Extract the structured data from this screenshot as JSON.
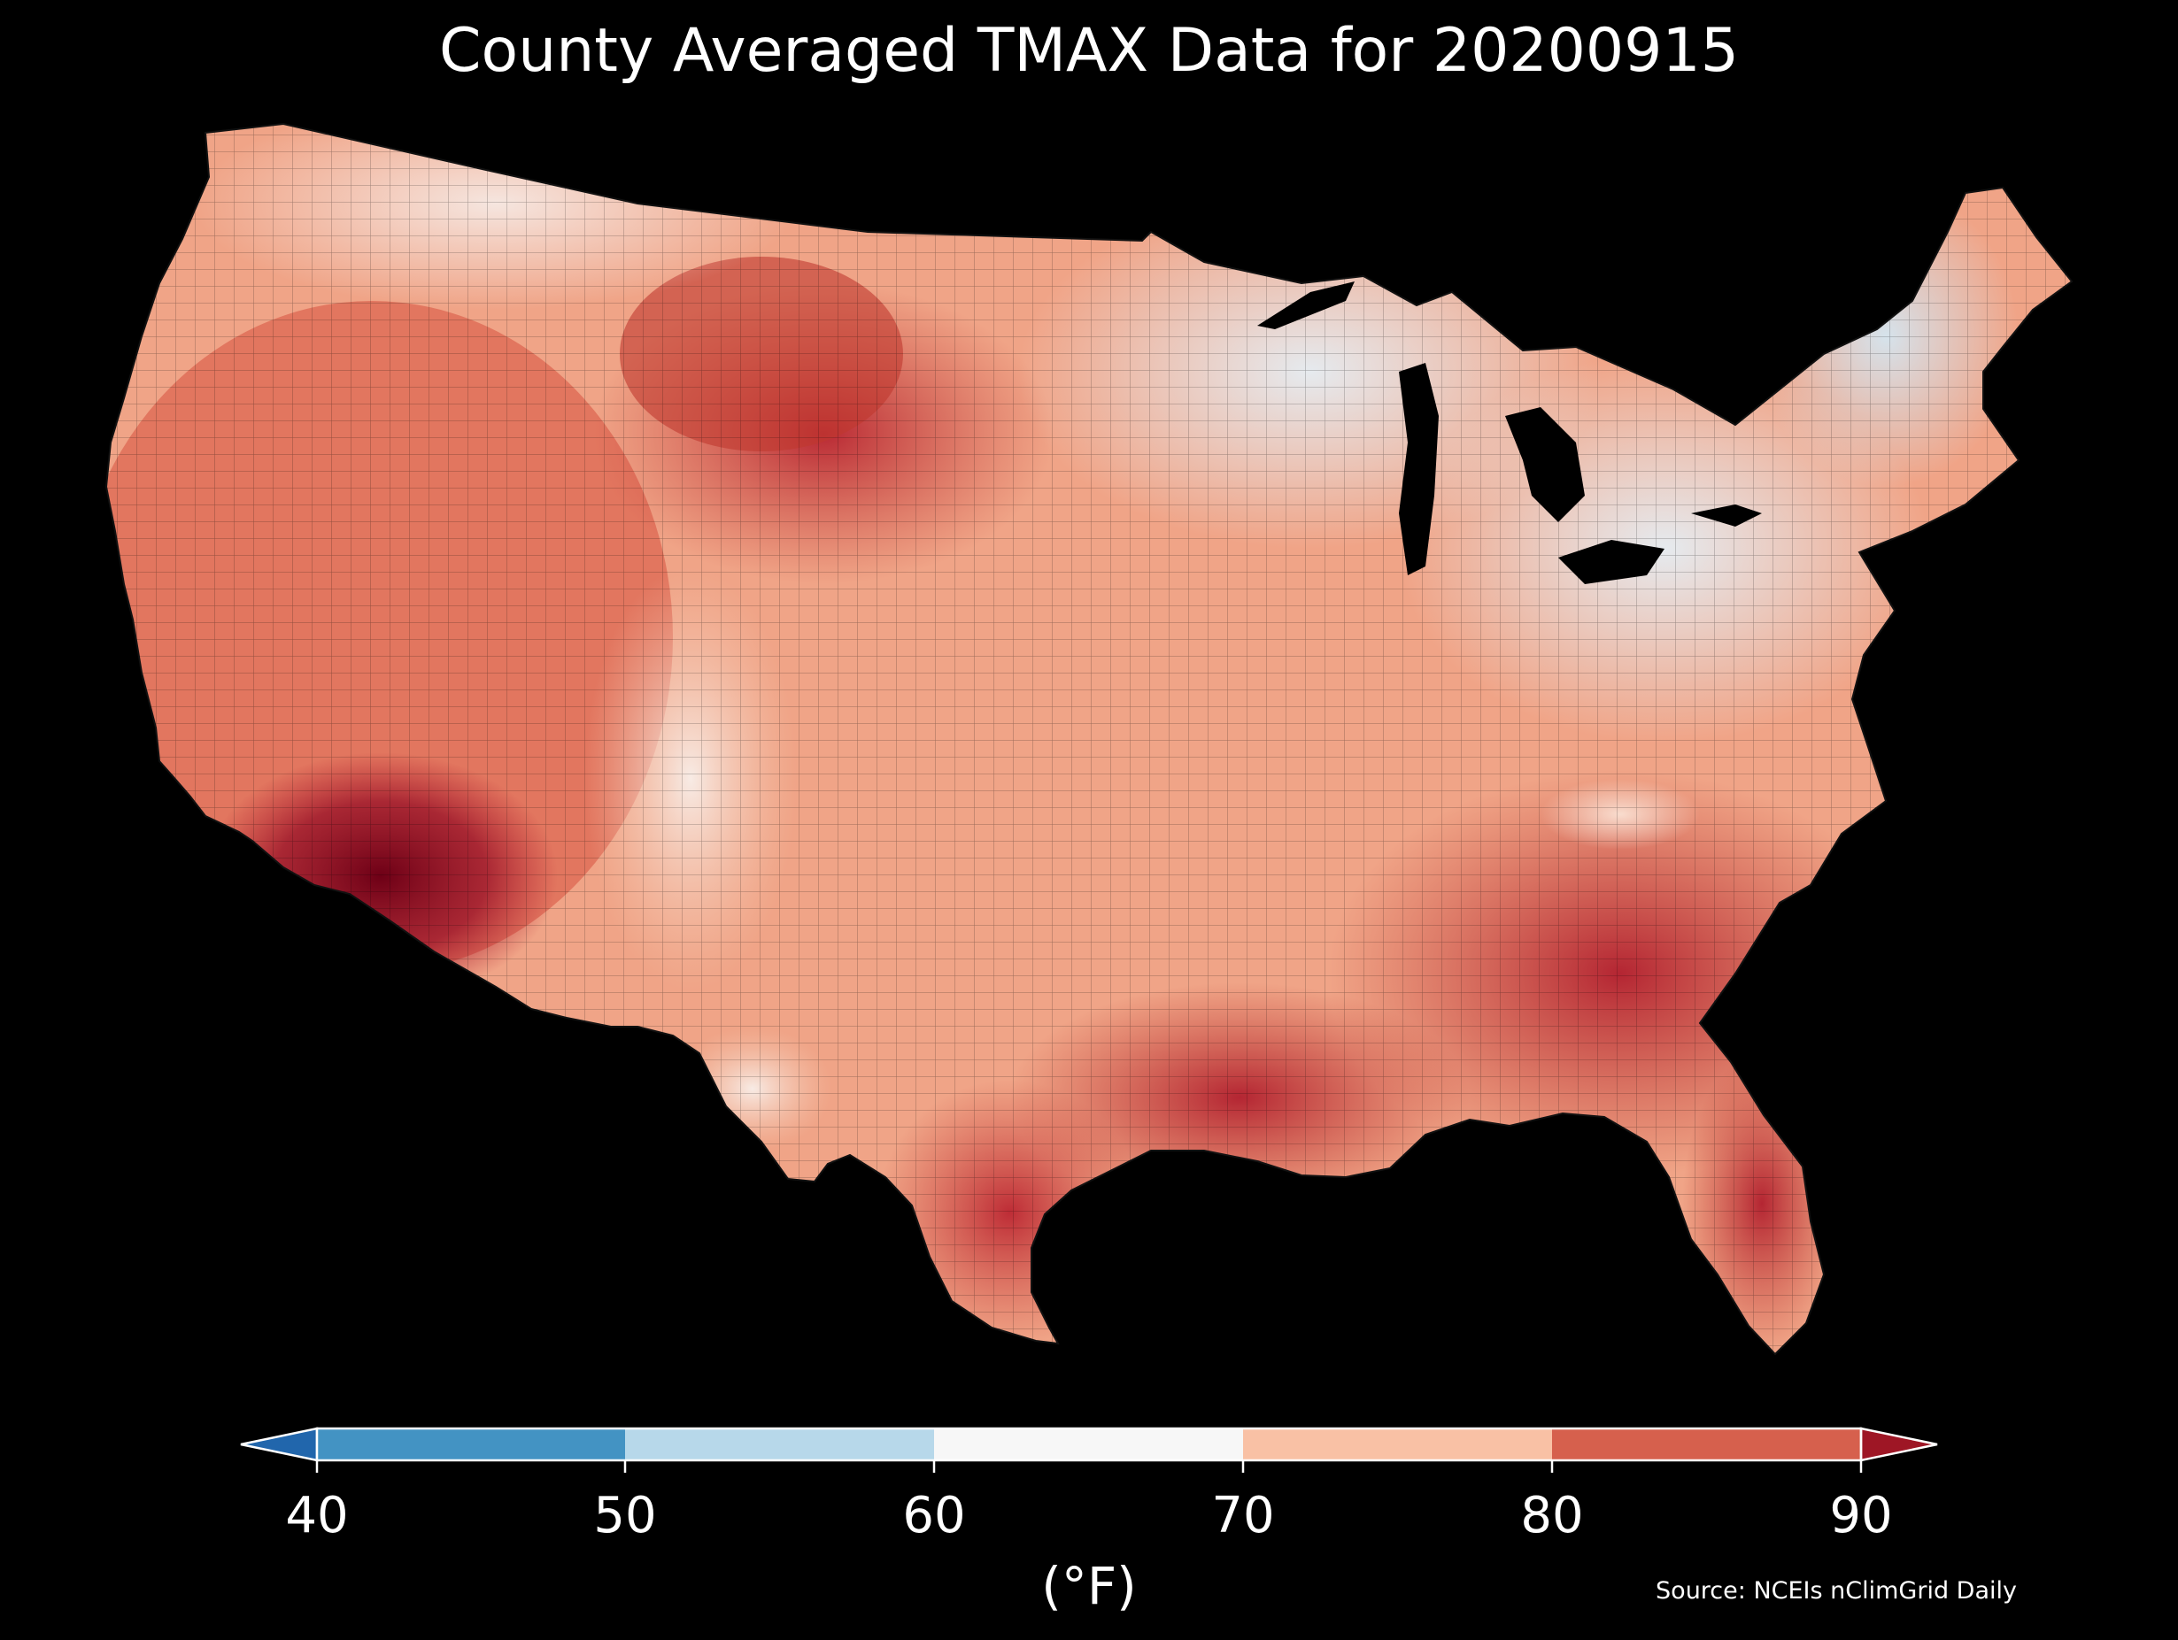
{
  "title": "County Averaged TMAX Data for 20200915",
  "source": "Source: NCEIs nClimGrid Daily",
  "colorbar": {
    "unit": "(°F)",
    "ticks": [
      "40",
      "50",
      "60",
      "70",
      "80",
      "90"
    ],
    "bins": [
      {
        "range": "<40",
        "color": "#2166ac"
      },
      {
        "range": "40-50",
        "color": "#4393c3"
      },
      {
        "range": "50-60",
        "color": "#b7d8ea"
      },
      {
        "range": "60-70",
        "color": "#f7f7f7"
      },
      {
        "range": "70-80",
        "color": "#f9c1a5"
      },
      {
        "range": "80-90",
        "color": "#d6604d"
      },
      {
        "range": ">90",
        "color": "#9e1625"
      }
    ],
    "extend": "both"
  },
  "map": {
    "region": "Contiguous United States",
    "variable": "TMAX",
    "units": "°F",
    "background_color": "#000000",
    "hottest_color": "#7a0019",
    "coolest_color": "#d7e8f3"
  }
}
